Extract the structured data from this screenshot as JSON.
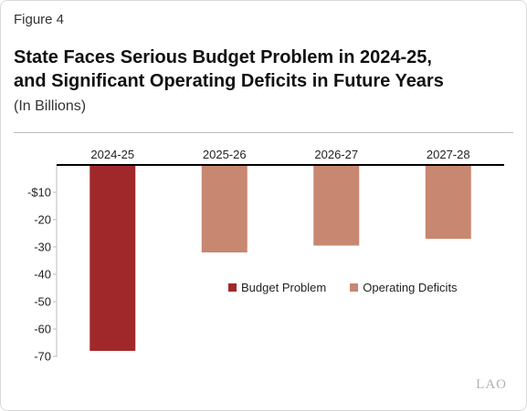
{
  "figure_label": "Figure 4",
  "title_line1": "State Faces Serious Budget Problem in 2024-25,",
  "title_line2": "and Significant Operating Deficits in Future Years",
  "subtitle": "(In Billions)",
  "logo_text": "LAO",
  "chart_data": {
    "type": "bar",
    "title": "State Faces Serious Budget Problem in 2024-25, and Significant Operating Deficits in Future Years",
    "subtitle": "(In Billions)",
    "categories": [
      "2024-25",
      "2025-26",
      "2026-27",
      "2027-28"
    ],
    "values": [
      -68,
      -32,
      -29.5,
      -27
    ],
    "bar_series": [
      "Budget Problem",
      "Operating Deficits",
      "Operating Deficits",
      "Operating Deficits"
    ],
    "legend": [
      {
        "name": "Budget Problem",
        "color": "#a1282a"
      },
      {
        "name": "Operating Deficits",
        "color": "#c88770"
      }
    ],
    "ylim": [
      -70,
      0
    ],
    "yticks": [
      -10,
      -20,
      -30,
      -40,
      -50,
      -60,
      -70
    ],
    "ytick_labels": [
      "-$10",
      "-20",
      "-30",
      "-40",
      "-50",
      "-60",
      "-70"
    ],
    "xlabel": "",
    "ylabel": "",
    "x_axis_position": "top",
    "legend_position": "inside-right",
    "grid": false
  }
}
